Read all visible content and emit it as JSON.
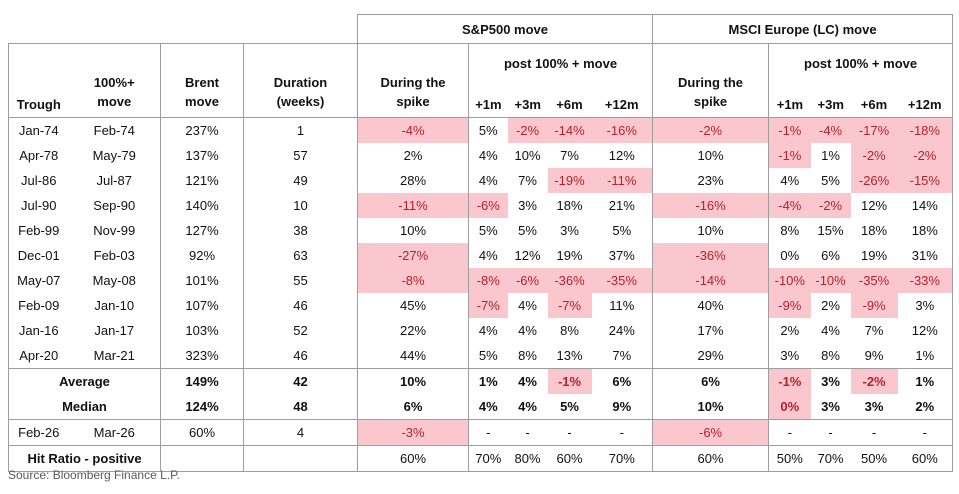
{
  "source": "Source: Bloomberg Finance L.P.",
  "colors": {
    "negative_bg": "#f9c7cd",
    "negative_text": "#b5212f",
    "border": "#9e9e9e",
    "source_text": "#595959"
  },
  "chart_data": {
    "type": "table",
    "group_headers": {
      "sp500": "S&P500 move",
      "msci": "MSCI Europe (LC) move"
    },
    "post_label": "post 100% + move",
    "columns": {
      "trough": "Trough",
      "move": "100%+ move",
      "brent": "Brent move",
      "duration": "Duration (weeks)",
      "during": "During the spike",
      "post_cols": [
        "+1m",
        "+3m",
        "+6m",
        "+12m"
      ]
    },
    "rows": [
      {
        "trough": "Jan-74",
        "move": "Feb-74",
        "brent": "237%",
        "duration": "1",
        "sp": [
          [
            "-4%",
            1
          ],
          [
            "5%",
            0
          ],
          [
            "-2%",
            1
          ],
          [
            "-14%",
            1
          ],
          [
            "-16%",
            1
          ]
        ],
        "msci": [
          [
            "-2%",
            1
          ],
          [
            "-1%",
            1
          ],
          [
            "-4%",
            1
          ],
          [
            "-17%",
            1
          ],
          [
            "-18%",
            1
          ]
        ]
      },
      {
        "trough": "Apr-78",
        "move": "May-79",
        "brent": "137%",
        "duration": "57",
        "sp": [
          [
            "2%",
            0
          ],
          [
            "4%",
            0
          ],
          [
            "10%",
            0
          ],
          [
            "7%",
            0
          ],
          [
            "12%",
            0
          ]
        ],
        "msci": [
          [
            "10%",
            0
          ],
          [
            "-1%",
            1
          ],
          [
            "1%",
            0
          ],
          [
            "-2%",
            1
          ],
          [
            "-2%",
            1
          ]
        ]
      },
      {
        "trough": "Jul-86",
        "move": "Jul-87",
        "brent": "121%",
        "duration": "49",
        "sp": [
          [
            "28%",
            0
          ],
          [
            "4%",
            0
          ],
          [
            "7%",
            0
          ],
          [
            "-19%",
            1
          ],
          [
            "-11%",
            1
          ]
        ],
        "msci": [
          [
            "23%",
            0
          ],
          [
            "4%",
            0
          ],
          [
            "5%",
            0
          ],
          [
            "-26%",
            1
          ],
          [
            "-15%",
            1
          ]
        ]
      },
      {
        "trough": "Jul-90",
        "move": "Sep-90",
        "brent": "140%",
        "duration": "10",
        "sp": [
          [
            "-11%",
            1
          ],
          [
            "-6%",
            1
          ],
          [
            "3%",
            0
          ],
          [
            "18%",
            0
          ],
          [
            "21%",
            0
          ]
        ],
        "msci": [
          [
            "-16%",
            1
          ],
          [
            "-4%",
            1
          ],
          [
            "-2%",
            1
          ],
          [
            "12%",
            0
          ],
          [
            "14%",
            0
          ]
        ]
      },
      {
        "trough": "Feb-99",
        "move": "Nov-99",
        "brent": "127%",
        "duration": "38",
        "sp": [
          [
            "10%",
            0
          ],
          [
            "5%",
            0
          ],
          [
            "5%",
            0
          ],
          [
            "3%",
            0
          ],
          [
            "5%",
            0
          ]
        ],
        "msci": [
          [
            "10%",
            0
          ],
          [
            "8%",
            0
          ],
          [
            "15%",
            0
          ],
          [
            "18%",
            0
          ],
          [
            "18%",
            0
          ]
        ]
      },
      {
        "trough": "Dec-01",
        "move": "Feb-03",
        "brent": "92%",
        "duration": "63",
        "sp": [
          [
            "-27%",
            1
          ],
          [
            "4%",
            0
          ],
          [
            "12%",
            0
          ],
          [
            "19%",
            0
          ],
          [
            "37%",
            0
          ]
        ],
        "msci": [
          [
            "-36%",
            1
          ],
          [
            "0%",
            0
          ],
          [
            "6%",
            0
          ],
          [
            "19%",
            0
          ],
          [
            "31%",
            0
          ]
        ]
      },
      {
        "trough": "May-07",
        "move": "May-08",
        "brent": "101%",
        "duration": "55",
        "sp": [
          [
            "-8%",
            1
          ],
          [
            "-8%",
            1
          ],
          [
            "-6%",
            1
          ],
          [
            "-36%",
            1
          ],
          [
            "-35%",
            1
          ]
        ],
        "msci": [
          [
            "-14%",
            1
          ],
          [
            "-10%",
            1
          ],
          [
            "-10%",
            1
          ],
          [
            "-35%",
            1
          ],
          [
            "-33%",
            1
          ]
        ]
      },
      {
        "trough": "Feb-09",
        "move": "Jan-10",
        "brent": "107%",
        "duration": "46",
        "sp": [
          [
            "45%",
            0
          ],
          [
            "-7%",
            1
          ],
          [
            "4%",
            0
          ],
          [
            "-7%",
            1
          ],
          [
            "11%",
            0
          ]
        ],
        "msci": [
          [
            "40%",
            0
          ],
          [
            "-9%",
            1
          ],
          [
            "2%",
            0
          ],
          [
            "-9%",
            1
          ],
          [
            "3%",
            0
          ]
        ]
      },
      {
        "trough": "Jan-16",
        "move": "Jan-17",
        "brent": "103%",
        "duration": "52",
        "sp": [
          [
            "22%",
            0
          ],
          [
            "4%",
            0
          ],
          [
            "4%",
            0
          ],
          [
            "8%",
            0
          ],
          [
            "24%",
            0
          ]
        ],
        "msci": [
          [
            "17%",
            0
          ],
          [
            "2%",
            0
          ],
          [
            "4%",
            0
          ],
          [
            "7%",
            0
          ],
          [
            "12%",
            0
          ]
        ]
      },
      {
        "trough": "Apr-20",
        "move": "Mar-21",
        "brent": "323%",
        "duration": "46",
        "sp": [
          [
            "44%",
            0
          ],
          [
            "5%",
            0
          ],
          [
            "8%",
            0
          ],
          [
            "13%",
            0
          ],
          [
            "7%",
            0
          ]
        ],
        "msci": [
          [
            "29%",
            0
          ],
          [
            "3%",
            0
          ],
          [
            "8%",
            0
          ],
          [
            "9%",
            0
          ],
          [
            "1%",
            0
          ]
        ]
      }
    ],
    "summary_rows": [
      {
        "label": "Average",
        "brent": "149%",
        "duration": "42",
        "sp": [
          [
            "10%",
            0
          ],
          [
            "1%",
            0
          ],
          [
            "4%",
            0
          ],
          [
            "-1%",
            1
          ],
          [
            "6%",
            0
          ]
        ],
        "msci": [
          [
            "6%",
            0
          ],
          [
            "-1%",
            1
          ],
          [
            "3%",
            0
          ],
          [
            "-2%",
            1
          ],
          [
            "1%",
            0
          ]
        ]
      },
      {
        "label": "Median",
        "brent": "124%",
        "duration": "48",
        "sp": [
          [
            "6%",
            0
          ],
          [
            "4%",
            0
          ],
          [
            "4%",
            0
          ],
          [
            "5%",
            0
          ],
          [
            "9%",
            0
          ]
        ],
        "msci": [
          [
            "10%",
            0
          ],
          [
            "0%",
            1
          ],
          [
            "3%",
            0
          ],
          [
            "3%",
            0
          ],
          [
            "2%",
            0
          ]
        ]
      }
    ],
    "current_row": {
      "trough": "Feb-26",
      "move": "Mar-26",
      "brent": "60%",
      "duration": "4",
      "sp": [
        [
          "-3%",
          1
        ],
        [
          "-",
          0
        ],
        [
          "-",
          0
        ],
        [
          "-",
          0
        ],
        [
          "-",
          0
        ]
      ],
      "msci": [
        [
          "-6%",
          1
        ],
        [
          "-",
          0
        ],
        [
          "-",
          0
        ],
        [
          "-",
          0
        ],
        [
          "-",
          0
        ]
      ]
    },
    "hit_ratio_row": {
      "label": "Hit Ratio - positive",
      "sp": [
        [
          "60%",
          0
        ],
        [
          "70%",
          0
        ],
        [
          "80%",
          0
        ],
        [
          "60%",
          0
        ],
        [
          "70%",
          0
        ]
      ],
      "msci": [
        [
          "60%",
          0
        ],
        [
          "50%",
          0
        ],
        [
          "70%",
          0
        ],
        [
          "50%",
          0
        ],
        [
          "60%",
          0
        ]
      ]
    }
  }
}
